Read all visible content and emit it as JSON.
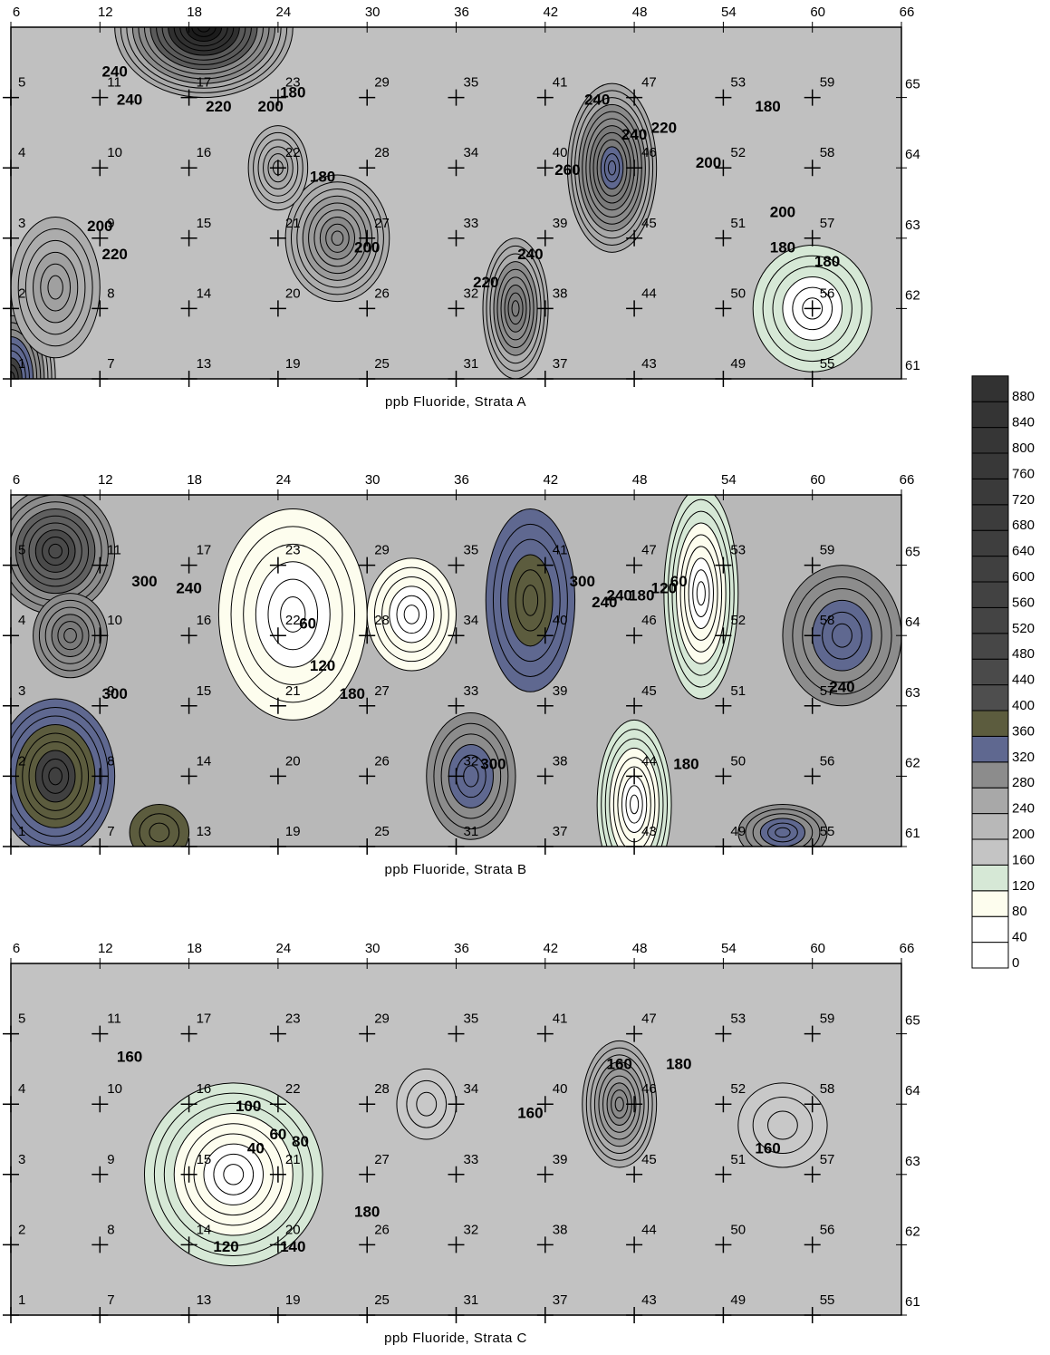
{
  "chart_data": {
    "type": "contour",
    "xlim": [
      6,
      66
    ],
    "xticks": [
      6,
      12,
      18,
      24,
      30,
      36,
      42,
      48,
      54,
      60,
      66
    ],
    "ylim": [
      61,
      66
    ],
    "yticks": [
      61,
      62,
      63,
      64,
      65
    ],
    "well_ids": [
      [
        1,
        2,
        3,
        4,
        5
      ],
      [
        7,
        8,
        9,
        10,
        11
      ],
      [
        13,
        14,
        15,
        16,
        17
      ],
      [
        19,
        20,
        21,
        22,
        23
      ],
      [
        25,
        26,
        27,
        28,
        29
      ],
      [
        31,
        32,
        33,
        34,
        35
      ],
      [
        37,
        38,
        39,
        40,
        41
      ],
      [
        43,
        44,
        45,
        46,
        47
      ],
      [
        49,
        50,
        51,
        52,
        53
      ],
      [
        55,
        56,
        57,
        58,
        59
      ]
    ],
    "panels": [
      {
        "caption": "ppb Fluoride, Strata A",
        "contour_labels": [
          240,
          240,
          220,
          200,
          180,
          180,
          200,
          220,
          240,
          200,
          220,
          240,
          260,
          240,
          220,
          200,
          200,
          180,
          180,
          180
        ]
      },
      {
        "caption": "ppb Fluoride, Strata B",
        "contour_labels": [
          300,
          240,
          300,
          60,
          120,
          180,
          240,
          300,
          300,
          240,
          180,
          120,
          60,
          180,
          240
        ]
      },
      {
        "caption": "ppb Fluoride, Strata C",
        "contour_labels": [
          160,
          100,
          40,
          60,
          80,
          120,
          140,
          180,
          160,
          160,
          180,
          160
        ]
      }
    ],
    "legend": {
      "levels": [
        0,
        40,
        80,
        120,
        160,
        200,
        240,
        280,
        320,
        360,
        400,
        440,
        480,
        520,
        560,
        600,
        640,
        680,
        720,
        760,
        800,
        840,
        880
      ],
      "colors": [
        "#ffffff",
        "#ffffff",
        "#fdfdee",
        "#d6e8d6",
        "#c4c4c4",
        "#b8b8b8",
        "#a8a8a8",
        "#8c8c8c",
        "#5f6890",
        "#5c5c3e",
        "#4e4e4e",
        "#4a4a4a",
        "#474747",
        "#444444",
        "#424242",
        "#404040",
        "#3e3e3e",
        "#3c3c3c",
        "#3a3a3a",
        "#383838",
        "#363636",
        "#343434",
        "#323232"
      ]
    }
  }
}
